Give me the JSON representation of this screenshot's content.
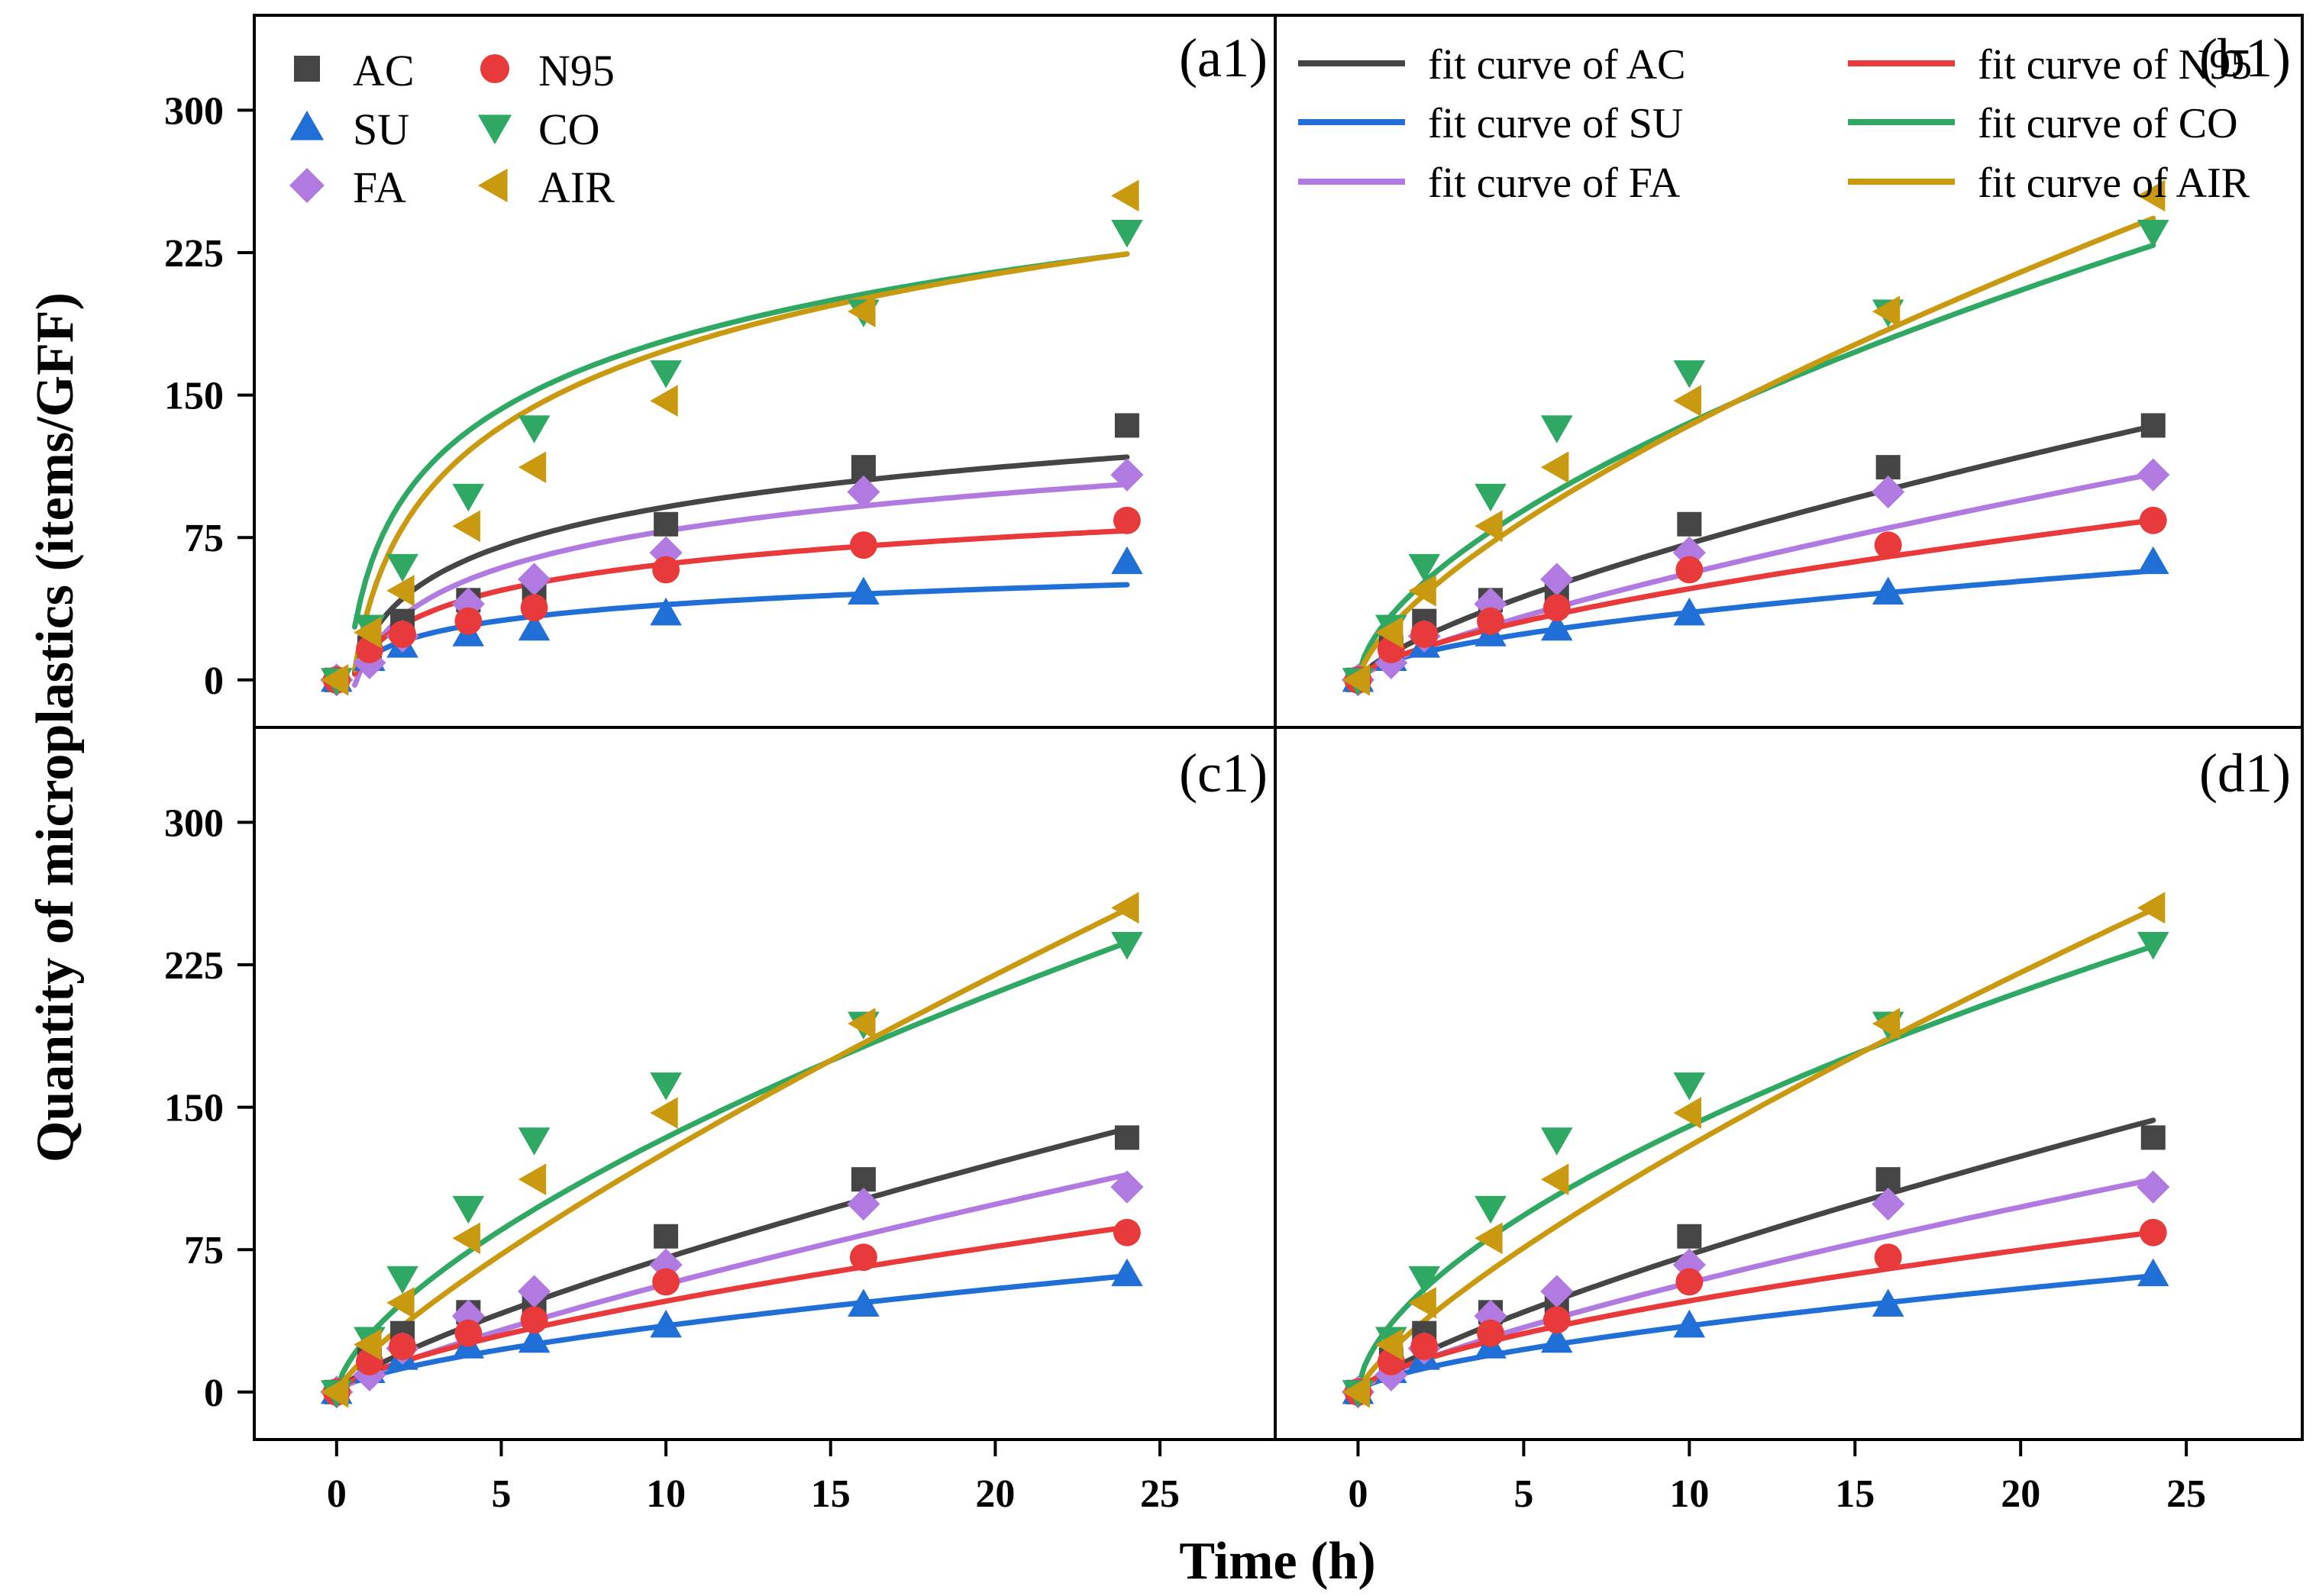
{
  "chart_data": {
    "type": "scatter",
    "xlabel": "Time  (h)",
    "ylabel": "Quantity of microplastics (items/GFF)",
    "xlim": [
      -2.5,
      28.5
    ],
    "ylim": [
      -25,
      350
    ],
    "x_ticks": [
      "0",
      "5",
      "10",
      "15",
      "20",
      "25"
    ],
    "y_ticks": [
      "0",
      "75",
      "150",
      "225",
      "300"
    ],
    "x": [
      0,
      1,
      2,
      4,
      6,
      10,
      16,
      24
    ],
    "series": [
      {
        "name": "AC",
        "color": "#454545",
        "marker": "square",
        "values": [
          0,
          17,
          31,
          42,
          47,
          82,
          112,
          134
        ]
      },
      {
        "name": "SU",
        "color": "#1f6fd6",
        "marker": "triangle-up",
        "values": [
          0,
          11,
          18,
          24,
          27,
          35,
          46,
          62
        ]
      },
      {
        "name": "FA",
        "color": "#b07ae0",
        "marker": "diamond",
        "values": [
          0,
          9,
          23,
          40,
          53,
          67,
          99,
          108
        ]
      },
      {
        "name": "N95",
        "color": "#e8393b",
        "marker": "circle",
        "values": [
          0,
          16,
          24,
          31,
          38,
          58,
          71,
          84
        ]
      },
      {
        "name": "CO",
        "color": "#2ea862",
        "marker": "triangle-down",
        "values": [
          0,
          28,
          60,
          97,
          133,
          162,
          194,
          236
        ]
      },
      {
        "name": "AIR",
        "color": "#c99a0f",
        "marker": "triangle-left",
        "values": [
          0,
          25,
          47,
          81,
          112,
          147,
          194,
          255
        ]
      }
    ],
    "panels": [
      {
        "id": "a1",
        "label": "(a1)",
        "model": "log",
        "fits": [
          {
            "series": "AC",
            "a": 22,
            "b": 30
          },
          {
            "series": "SU",
            "a": 12,
            "b": 12
          },
          {
            "series": "FA",
            "a": 14,
            "b": 28
          },
          {
            "series": "N95",
            "a": 15,
            "b": 20
          },
          {
            "series": "CO",
            "a": 59,
            "b": 52
          },
          {
            "series": "AIR",
            "a": 40,
            "b": 58
          }
        ]
      },
      {
        "id": "b1",
        "label": "(b1)",
        "model": "power",
        "fits": [
          {
            "series": "AC",
            "a": 14,
            "b": 0.71
          },
          {
            "series": "SU",
            "a": 10,
            "b": 0.55
          },
          {
            "series": "FA",
            "a": 10,
            "b": 0.75
          },
          {
            "series": "N95",
            "a": 11,
            "b": 0.64
          },
          {
            "series": "CO",
            "a": 34,
            "b": 0.6
          },
          {
            "series": "AIR",
            "a": 28,
            "b": 0.68
          }
        ],
        "legend": [
          "fit curve of AC",
          "fit curve of  N95",
          "fit curve of SU",
          "fit curve of CO",
          "fit curve of FA",
          "fit curve of AIR"
        ]
      },
      {
        "id": "c1",
        "label": "(c1)",
        "model": "power",
        "fits": [
          {
            "series": "AC",
            "a": 12,
            "b": 0.77
          },
          {
            "series": "SU",
            "a": 8,
            "b": 0.64
          },
          {
            "series": "FA",
            "a": 9,
            "b": 0.8
          },
          {
            "series": "N95",
            "a": 10,
            "b": 0.68
          },
          {
            "series": "CO",
            "a": 30,
            "b": 0.65
          },
          {
            "series": "AIR",
            "a": 20,
            "b": 0.8
          }
        ]
      },
      {
        "id": "d1",
        "label": "(d1)",
        "model": "power",
        "fits": [
          {
            "series": "AC",
            "a": 12,
            "b": 0.78
          },
          {
            "series": "SU",
            "a": 8,
            "b": 0.64
          },
          {
            "series": "FA",
            "a": 10,
            "b": 0.76
          },
          {
            "series": "N95",
            "a": 11,
            "b": 0.64
          },
          {
            "series": "CO",
            "a": 36,
            "b": 0.59
          },
          {
            "series": "AIR",
            "a": 22,
            "b": 0.77
          }
        ]
      }
    ]
  }
}
